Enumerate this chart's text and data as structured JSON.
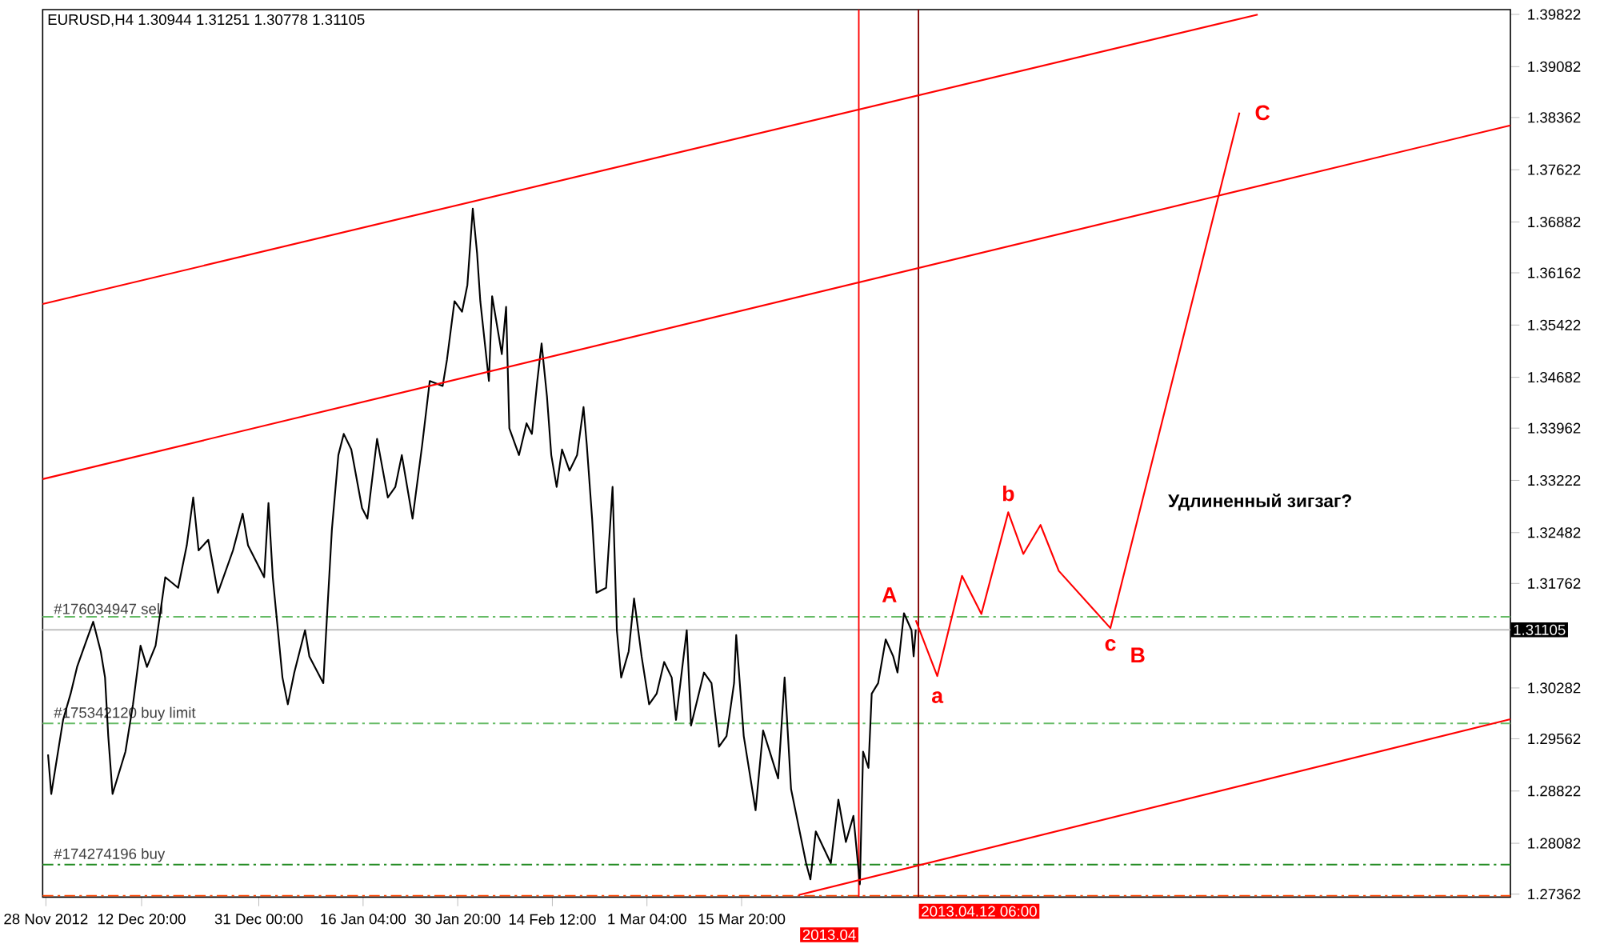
{
  "chart_data": {
    "type": "line",
    "title": "EURUSD,H4  1.30944 1.31251 1.30778 1.31105",
    "xlim": [
      "2012-11-27T12:00",
      "2013-07-13"
    ],
    "ylim": [
      1.2732,
      1.3989
    ],
    "xticks": [
      {
        "value": "2012-11-28",
        "label": "28 Nov 2012"
      },
      {
        "value": "2012-12-12T20:00",
        "label": "12 Dec 20:00"
      },
      {
        "value": "2012-12-31",
        "label": "31 Dec 00:00"
      },
      {
        "value": "2013-01-16T04:00",
        "label": "16 Jan 04:00"
      },
      {
        "value": "2013-01-30T20:00",
        "label": "30 Jan 20:00"
      },
      {
        "value": "2013-02-14T12:00",
        "label": "14 Feb 12:00"
      },
      {
        "value": "2013-03-01T04:00",
        "label": "1 Mar 04:00"
      },
      {
        "value": "2013-03-15T20:00",
        "label": "15 Mar 20:00"
      }
    ],
    "yticks": [
      1.39822,
      1.39082,
      1.38362,
      1.37622,
      1.36882,
      1.36162,
      1.35422,
      1.34682,
      1.33962,
      1.33222,
      1.32482,
      1.31762,
      1.30282,
      1.29562,
      1.28822,
      1.28082,
      1.27362
    ],
    "series": [
      {
        "color": "#000000",
        "x": [
          "2012-11-28T08:00",
          "2012-11-28T20:00",
          "2012-11-30T16:00",
          "2012-12-01T20:00",
          "2012-12-02T20:00",
          "2012-12-04",
          "2012-12-05T08:00",
          "2012-12-06T12:00",
          "2012-12-07T04:00",
          "2012-12-07T16:00",
          "2012-12-08T08:00",
          "2012-12-09T08:00",
          "2012-12-10T08:00",
          "2012-12-11T12:00",
          "2012-12-12T16:00",
          "2012-12-13T16:00",
          "2012-12-15",
          "2012-12-16T04:00",
          "2012-12-16T12:00",
          "2012-12-18T12:00",
          "2012-12-19T20:00",
          "2012-12-20T20:00",
          "2012-12-21T16:00",
          "2012-12-23T04:00",
          "2012-12-24T16:00",
          "2012-12-27",
          "2012-12-28T12:00",
          "2012-12-29T08:00",
          "2012-12-31T20:00",
          "2013-01-01T12:00",
          "2013-01-02T04:00",
          "2013-01-03T16:00",
          "2013-01-04T12:00",
          "2013-01-05T12:00",
          "2013-01-07T04:00",
          "2013-01-07T20:00",
          "2013-01-10",
          "2013-01-10T12:00",
          "2013-01-11T08:00",
          "2013-01-12T08:00",
          "2013-01-13T04:00",
          "2013-01-14T08:00",
          "2013-01-16",
          "2013-01-16T20:00",
          "2013-01-18T08:00",
          "2013-01-20",
          "2013-01-21T04:00",
          "2013-01-22T04:00",
          "2013-01-23T20:00",
          "2013-01-25T08:00",
          "2013-01-26T12:00",
          "2013-01-28T12:00",
          "2013-01-29T04:00",
          "2013-01-30T08:00",
          "2013-01-31T12:00",
          "2013-02-01T08:00",
          "2013-02-02T04:00",
          "2013-02-02T20:00",
          "2013-02-03T08:00",
          "2013-02-04T16:00",
          "2013-02-05T04:00",
          "2013-02-06T16:00",
          "2013-02-07T08:00",
          "2013-02-07T20:00",
          "2013-02-09T08:00",
          "2013-02-10T12:00",
          "2013-02-11T08:00",
          "2013-02-12T04:00",
          "2013-02-12T20:00",
          "2013-02-13T16:00",
          "2013-02-14T08:00",
          "2013-02-15T04:00",
          "2013-02-16",
          "2013-02-17T04:00",
          "2013-02-18T08:00",
          "2013-02-19T08:00",
          "2013-02-19T20:00",
          "2013-02-20T16:00",
          "2013-02-21T08:00",
          "2013-02-22T20:00",
          "2013-02-23T20:00",
          "2013-02-24T12:00",
          "2013-02-25T04:00",
          "2013-02-26T08:00",
          "2013-02-27T04:00",
          "2013-02-28T08:00",
          "2013-03-01T12:00",
          "2013-03-02T16:00",
          "2013-03-03T20:00",
          "2013-03-05",
          "2013-03-05T16:00",
          "2013-03-07T08:00",
          "2013-03-08",
          "2013-03-10",
          "2013-03-11T04:00",
          "2013-03-12T08:00",
          "2013-03-13T12:00",
          "2013-03-14T16:00",
          "2013-03-15",
          "2013-03-16T04:00",
          "2013-03-18",
          "2013-03-19T04:00",
          "2013-03-21T12:00",
          "2013-03-22T12:00",
          "2013-03-23T12:00",
          "2013-03-25T20:00",
          "2013-03-26T12:00",
          "2013-03-27T08:00",
          "2013-03-29T16:00",
          "2013-03-30T20:00",
          "2013-04-01",
          "2013-04-02T04:00",
          "2013-04-03T04:00",
          "2013-04-03T16:00",
          "2013-04-04T12:00",
          "2013-04-05",
          "2013-04-06",
          "2013-04-07T04:00",
          "2013-04-08T08:00",
          "2013-04-09",
          "2013-04-10",
          "2013-04-11T04:00",
          "2013-04-11T12:00",
          "2013-04-11T20:00"
        ],
        "values": [
          1.2934,
          1.2878,
          1.2983,
          1.302,
          1.3058,
          1.3088,
          1.3122,
          1.308,
          1.3043,
          1.296,
          1.2878,
          1.2908,
          1.2938,
          1.3005,
          1.3088,
          1.3058,
          1.3088,
          1.3163,
          1.3185,
          1.317,
          1.323,
          1.3298,
          1.3223,
          1.3238,
          1.3163,
          1.3223,
          1.3275,
          1.323,
          1.3185,
          1.329,
          1.3185,
          1.3043,
          1.3005,
          1.305,
          1.311,
          1.3073,
          1.3035,
          1.3118,
          1.3253,
          1.3358,
          1.3388,
          1.3366,
          1.3283,
          1.3268,
          1.3381,
          1.3298,
          1.3313,
          1.3358,
          1.3268,
          1.3373,
          1.3463,
          1.3456,
          1.3493,
          1.3576,
          1.3561,
          1.3599,
          1.3707,
          1.3644,
          1.3576,
          1.3463,
          1.3583,
          1.3501,
          1.3568,
          1.3396,
          1.3358,
          1.3403,
          1.3388,
          1.3463,
          1.3516,
          1.3441,
          1.3358,
          1.3313,
          1.3366,
          1.3336,
          1.3358,
          1.3426,
          1.3373,
          1.3268,
          1.3163,
          1.317,
          1.3313,
          1.311,
          1.3043,
          1.308,
          1.3155,
          1.3073,
          1.3005,
          1.302,
          1.3065,
          1.3043,
          1.2983,
          1.311,
          1.2975,
          1.305,
          1.3035,
          1.2945,
          1.296,
          1.3035,
          1.3103,
          1.296,
          1.2855,
          1.2968,
          1.29,
          1.3043,
          1.2885,
          1.278,
          1.2757,
          1.2825,
          1.278,
          1.287,
          1.281,
          1.2847,
          1.275,
          1.2938,
          1.2915,
          1.302,
          1.3035,
          1.3097,
          1.3073,
          1.305,
          1.3134,
          1.311,
          1.3073,
          1.3111
        ]
      },
      {
        "color": "#ff0000",
        "x": [
          "2012-11-27T12:00",
          "2013-06-03T20:00"
        ],
        "values": [
          1.3572,
          1.3982
        ]
      },
      {
        "color": "#ff0000",
        "x": [
          "2012-11-27T12:00",
          "2013-07-13"
        ],
        "values": [
          1.3324,
          1.3825
        ]
      },
      {
        "color": "#ff0000",
        "x": [
          "2013-03-24T16:00",
          "2013-07-13"
        ],
        "values": [
          1.2735,
          1.2984
        ]
      },
      {
        "color": "#ff0000",
        "x": [
          "2013-04-11T20:00",
          "2013-04-15T04:00",
          "2013-04-19",
          "2013-04-22",
          "2013-04-26T04:00",
          "2013-04-28T12:00",
          "2013-05-01T04:00",
          "2013-05-04",
          "2013-05-12",
          "2013-06-01"
        ],
        "values": [
          1.3124,
          1.3045,
          1.3187,
          1.3133,
          1.3277,
          1.3218,
          1.3259,
          1.3194,
          1.3113,
          1.3843
        ]
      }
    ],
    "ref_lines": [
      {
        "axis": "y",
        "value": 1.3129,
        "label": "#176034947 sell",
        "color": "#66bb66",
        "line_style": "dashed"
      },
      {
        "axis": "y",
        "value": 1.2978,
        "label": "#175342120 buy limit",
        "color": "#66bb66",
        "line_style": "dashed"
      },
      {
        "axis": "y",
        "value": 1.2778,
        "label": "#174274196 buy",
        "color": "#228b22",
        "line_style": "dashed"
      },
      {
        "axis": "y",
        "value": 1.2734,
        "color": "#ff4500",
        "line_style": "dashed"
      },
      {
        "axis": "y",
        "value": 1.31105,
        "label": "1.31105",
        "color": "#c0c0c0",
        "line_style": "solid"
      },
      {
        "axis": "x",
        "value": "2013-04-03",
        "label": "2013.04",
        "color": "#ff0000"
      },
      {
        "axis": "x",
        "value": "2013-04-12T06:00",
        "label": "2013.04.12 06:00",
        "color": "#800000"
      }
    ],
    "annotations": [
      {
        "text": "A",
        "x": "2013-04-10",
        "y": 1.3134
      },
      {
        "text": "a",
        "x": "2013-04-15T04:00",
        "y": 1.3045
      },
      {
        "text": "b",
        "x": "2013-04-26T04:00",
        "y": 1.3277
      },
      {
        "text": "c",
        "x": "2013-05-12",
        "y": 1.3113
      },
      {
        "text": "B",
        "x": "2013-05-12",
        "y": 1.3113
      },
      {
        "text": "C",
        "x": "2013-06-01",
        "y": 1.3843
      },
      "Удлиненный зигзаг?"
    ]
  }
}
